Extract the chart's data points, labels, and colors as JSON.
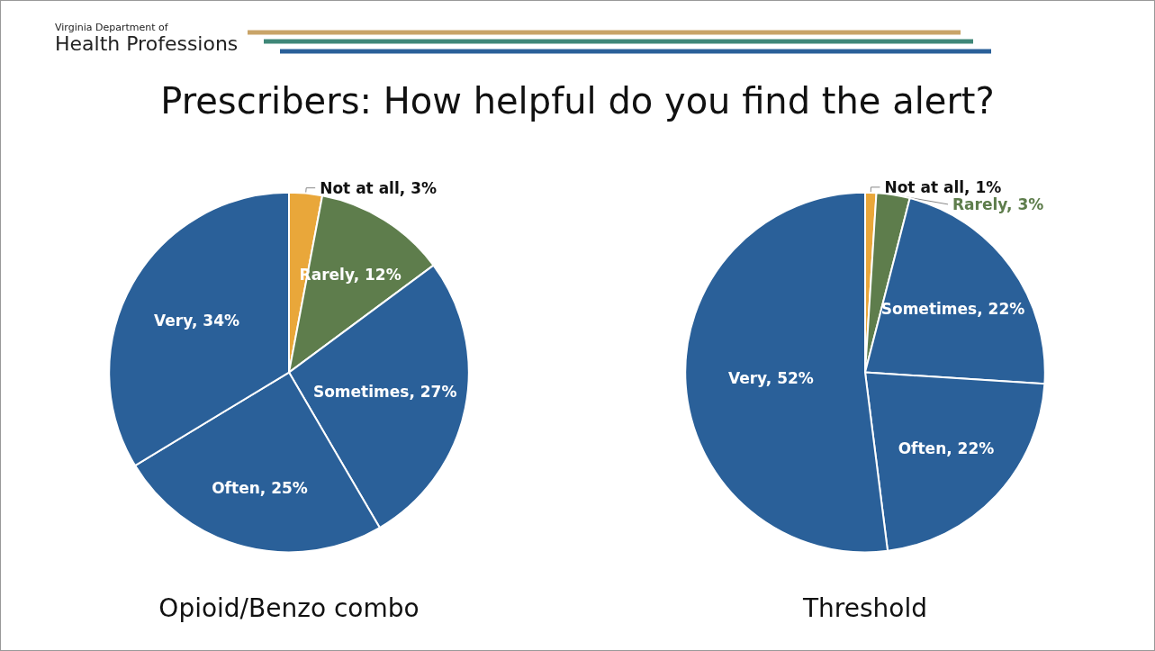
{
  "chart_data": [
    {
      "type": "pie",
      "title": "Prescribers: How helpful do you find the alert?",
      "xlabel": "Opioid/Benzo combo",
      "annotations": [
        "Virginia Department of",
        "Health Professions"
      ],
      "categories": [
        "Not at all",
        "Rarely",
        "Sometimes",
        "Often",
        "Very"
      ],
      "values": [
        3,
        12,
        27,
        25,
        34
      ],
      "colors": [
        "#e9a73a",
        "#5e7d4c",
        "#2a6099",
        "#2a6099",
        "#2a6099"
      ],
      "value_labels": [
        "3%",
        "12%",
        "27%",
        "25%",
        "34%"
      ]
    },
    {
      "type": "pie",
      "xlabel": "Threshold",
      "categories": [
        "Not at all",
        "Rarely",
        "Sometimes",
        "Often",
        "Very"
      ],
      "values": [
        1,
        3,
        22,
        22,
        52
      ],
      "colors": [
        "#e9a73a",
        "#5e7d4c",
        "#2a6099",
        "#2a6099",
        "#2a6099"
      ],
      "value_labels": [
        "1%",
        "3%",
        "22%",
        "22%",
        "52%"
      ]
    }
  ]
}
